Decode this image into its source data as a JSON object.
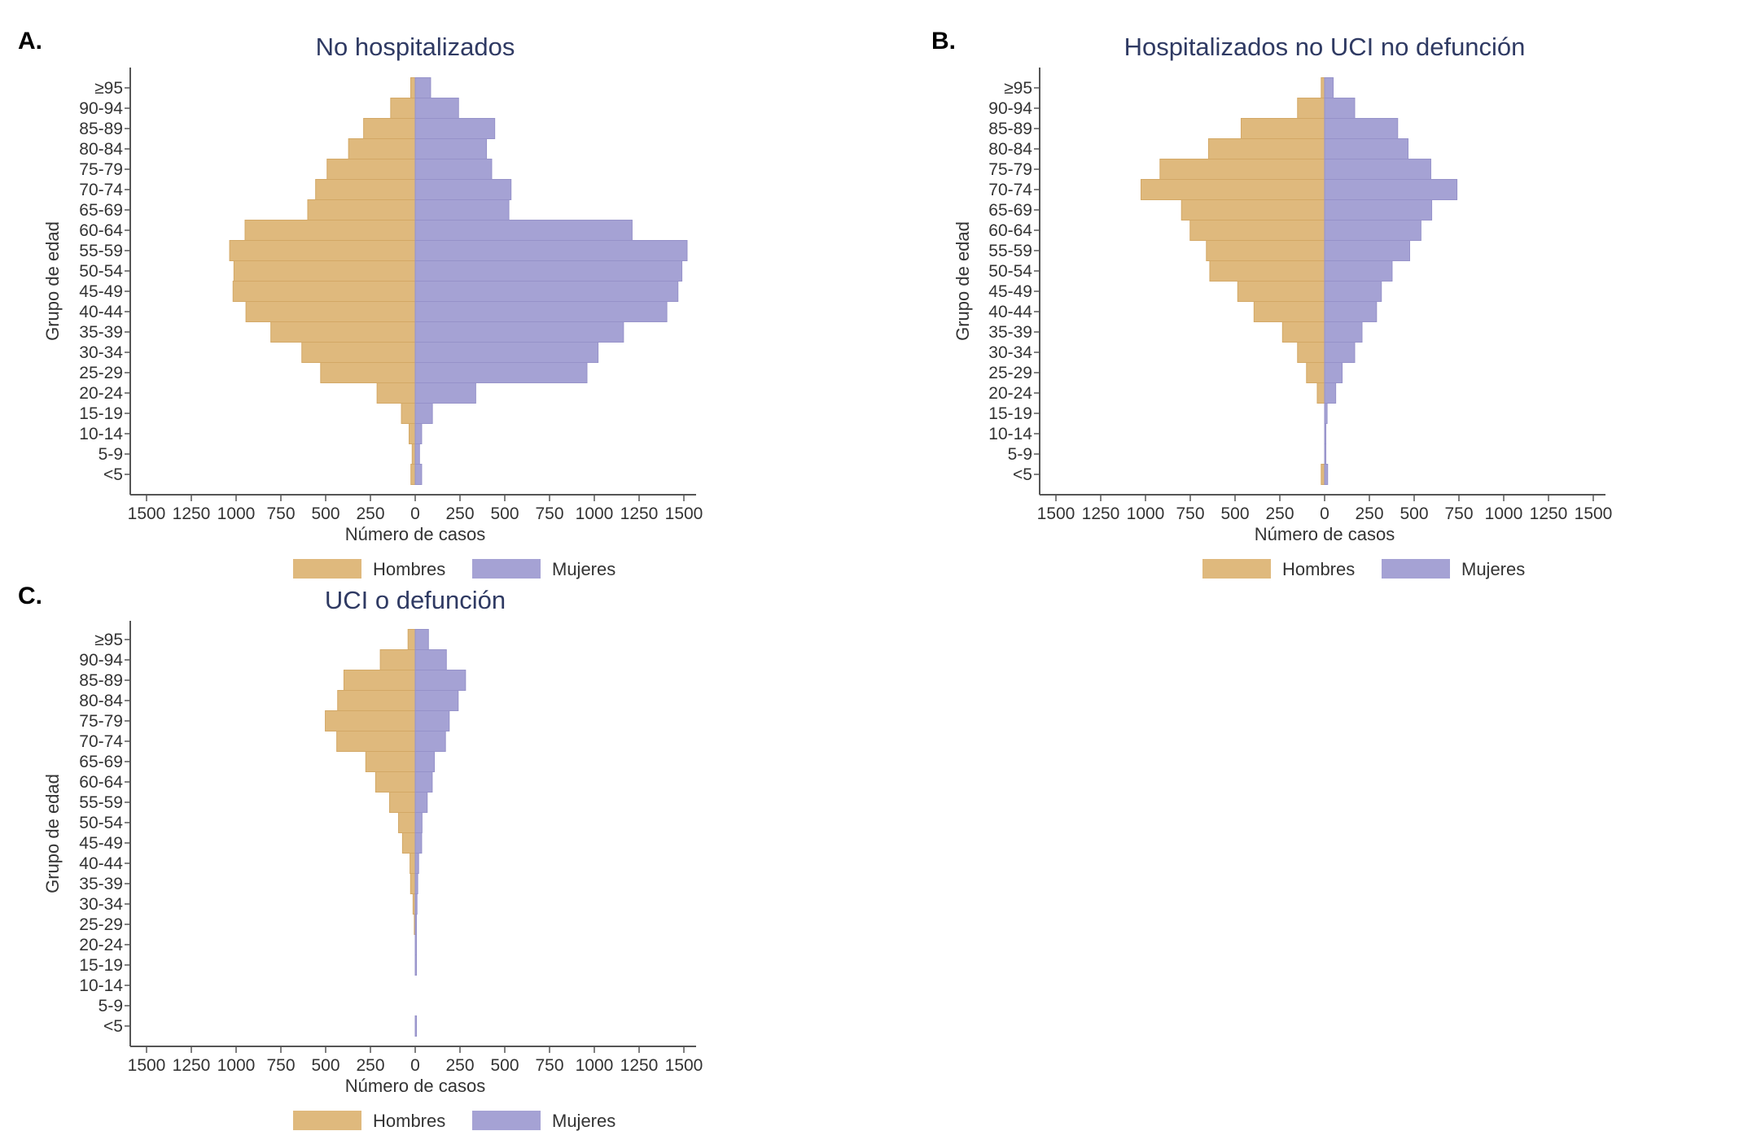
{
  "colors": {
    "men": "#dfb97d",
    "women": "#a5a2d4",
    "men_edge": "#d3a866",
    "women_edge": "#9692c9",
    "title": "#2f3a63"
  },
  "chart_data": [
    {
      "type": "bar",
      "orientation": "horizontal-population-pyramid",
      "panel_label": "A.",
      "title": "No hospitalizados",
      "xlabel": "Número de casos",
      "ylabel": "Grupo de edad",
      "xlim": [
        -1500,
        1500
      ],
      "xticks": [
        -1500,
        -1250,
        -1000,
        -750,
        -500,
        -250,
        0,
        250,
        500,
        750,
        1000,
        1250,
        1500
      ],
      "xtick_labels": [
        "1500",
        "1250",
        "1000",
        "750",
        "500",
        "250",
        "0",
        "250",
        "500",
        "750",
        "1000",
        "1250",
        "1500"
      ],
      "categories": [
        "≥95",
        "90-94",
        "85-89",
        "80-84",
        "75-79",
        "70-74",
        "65-69",
        "60-64",
        "55-59",
        "50-54",
        "45-49",
        "40-44",
        "35-39",
        "30-34",
        "25-29",
        "20-24",
        "15-19",
        "10-14",
        "5-9",
        "<5"
      ],
      "series": [
        {
          "name": "Hombres",
          "values": [
            25,
            137,
            288,
            372,
            492,
            556,
            600,
            950,
            1036,
            1012,
            1017,
            945,
            806,
            633,
            528,
            213,
            77,
            34,
            17,
            24
          ]
        },
        {
          "name": "Mujeres",
          "values": [
            86,
            242,
            444,
            398,
            427,
            535,
            523,
            1211,
            1518,
            1489,
            1467,
            1405,
            1163,
            1021,
            959,
            338,
            96,
            36,
            24,
            36
          ]
        }
      ],
      "legend": {
        "position": "bottom",
        "entries": [
          "Hombres",
          "Mujeres"
        ]
      }
    },
    {
      "type": "bar",
      "orientation": "horizontal-population-pyramid",
      "panel_label": "B.",
      "title": "Hospitalizados no UCI no defunción",
      "xlabel": "Número de casos",
      "ylabel": "Grupo de edad",
      "xlim": [
        -1500,
        1500
      ],
      "xticks": [
        -1500,
        -1250,
        -1000,
        -750,
        -500,
        -250,
        0,
        250,
        500,
        750,
        1000,
        1250,
        1500
      ],
      "xtick_labels": [
        "1500",
        "1250",
        "1000",
        "750",
        "500",
        "250",
        "0",
        "250",
        "500",
        "750",
        "1000",
        "1250",
        "1500"
      ],
      "categories": [
        "≥95",
        "90-94",
        "85-89",
        "80-84",
        "75-79",
        "70-74",
        "65-69",
        "60-64",
        "55-59",
        "50-54",
        "45-49",
        "40-44",
        "35-39",
        "30-34",
        "25-29",
        "20-24",
        "15-19",
        "10-14",
        "5-9",
        "<5"
      ],
      "series": [
        {
          "name": "Hombres",
          "values": [
            19,
            151,
            466,
            648,
            919,
            1025,
            799,
            751,
            660,
            641,
            485,
            394,
            235,
            151,
            101,
            41,
            0,
            0,
            0,
            19
          ]
        },
        {
          "name": "Mujeres",
          "values": [
            48,
            168,
            408,
            466,
            593,
            739,
            598,
            538,
            475,
            377,
            317,
            290,
            209,
            168,
            98,
            62,
            14,
            7,
            7,
            17
          ]
        }
      ],
      "legend": {
        "position": "bottom",
        "entries": [
          "Hombres",
          "Mujeres"
        ]
      }
    },
    {
      "type": "bar",
      "orientation": "horizontal-population-pyramid",
      "panel_label": "C.",
      "title": "UCI o defunción",
      "xlabel": "Número de casos",
      "ylabel": "Grupo de edad",
      "xlim": [
        -1500,
        1500
      ],
      "xticks": [
        -1500,
        -1250,
        -1000,
        -750,
        -500,
        -250,
        0,
        250,
        500,
        750,
        1000,
        1250,
        1500
      ],
      "xtick_labels": [
        "1500",
        "1250",
        "1000",
        "750",
        "500",
        "250",
        "0",
        "250",
        "500",
        "750",
        "1000",
        "1250",
        "1500"
      ],
      "categories": [
        "≥95",
        "90-94",
        "85-89",
        "80-84",
        "75-79",
        "70-74",
        "65-69",
        "60-64",
        "55-59",
        "50-54",
        "45-49",
        "40-44",
        "35-39",
        "30-34",
        "25-29",
        "20-24",
        "15-19",
        "10-14",
        "5-9",
        "<5"
      ],
      "series": [
        {
          "name": "Hombres",
          "values": [
            40,
            195,
            398,
            433,
            502,
            438,
            276,
            221,
            143,
            93,
            71,
            29,
            26,
            12,
            5,
            0,
            0,
            0,
            0,
            0
          ]
        },
        {
          "name": "Mujeres",
          "values": [
            74,
            174,
            281,
            240,
            190,
            169,
            107,
            95,
            67,
            38,
            36,
            19,
            14,
            10,
            7,
            7,
            7,
            0,
            0,
            7
          ]
        }
      ],
      "legend": {
        "position": "bottom",
        "entries": [
          "Hombres",
          "Mujeres"
        ]
      }
    }
  ]
}
